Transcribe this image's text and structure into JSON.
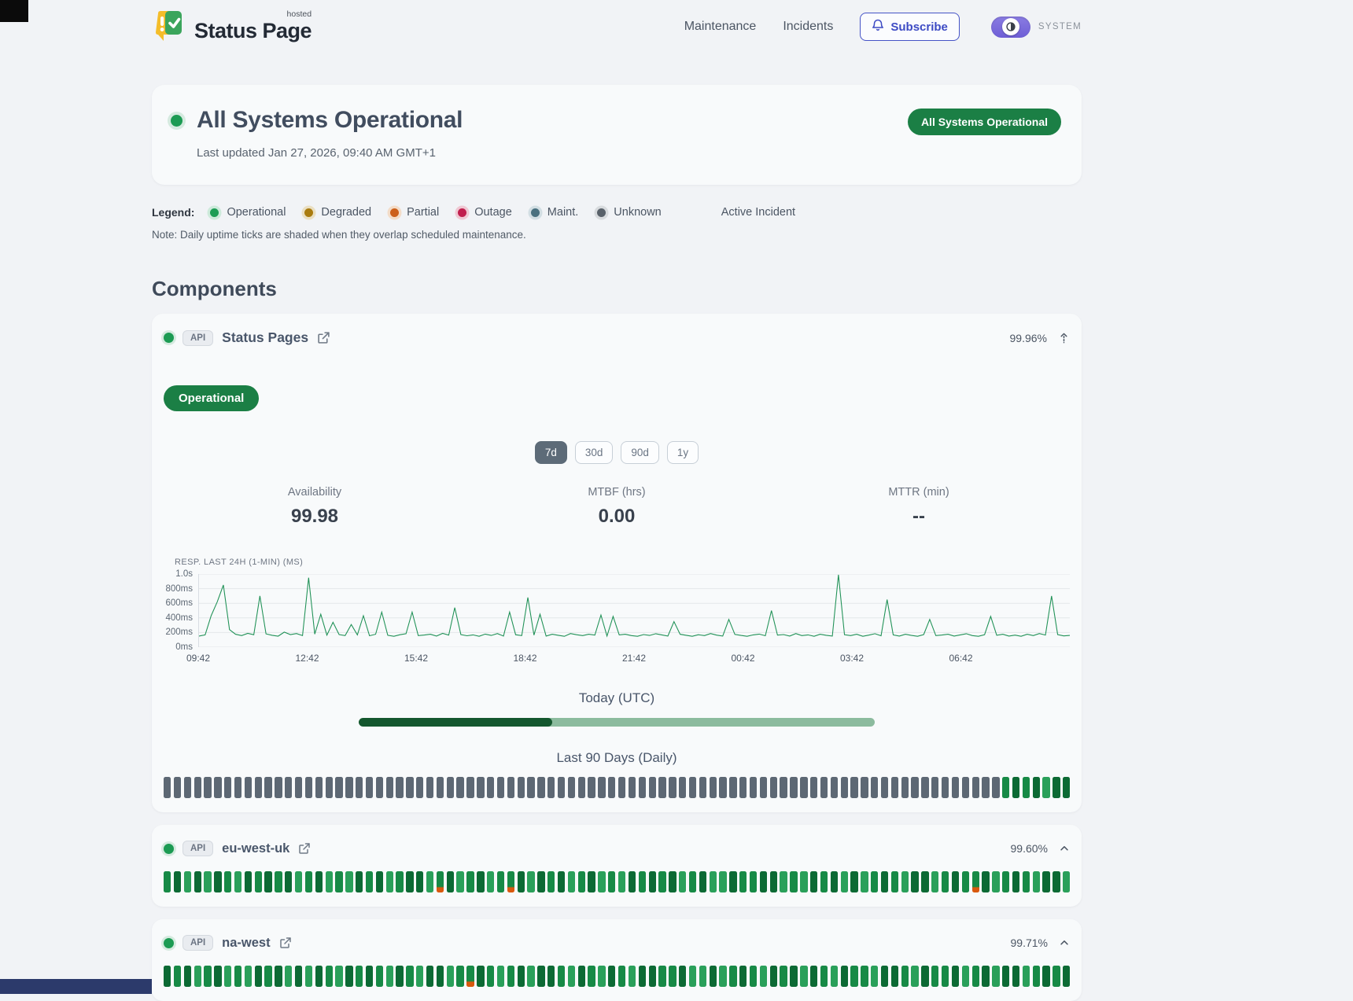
{
  "header": {
    "brand": {
      "name": "Status Page",
      "superscript": "hosted"
    },
    "nav": [
      {
        "label": "Maintenance"
      },
      {
        "label": "Incidents"
      }
    ],
    "subscribe_label": "Subscribe",
    "theme_label": "SYSTEM"
  },
  "hero": {
    "title": "All Systems Operational",
    "last_updated": "Last updated Jan 27, 2026, 09:40 AM GMT+1",
    "badge": "All Systems Operational"
  },
  "legend": {
    "label": "Legend:",
    "items": [
      {
        "label": "Operational",
        "color": "#1d9d55",
        "halo": "#cdeadb"
      },
      {
        "label": "Degraded",
        "color": "#a97b0e",
        "halo": "#eadfc2"
      },
      {
        "label": "Partial",
        "color": "#cc5f1a",
        "halo": "#f3dcc8"
      },
      {
        "label": "Outage",
        "color": "#c01e4d",
        "halo": "#efc8d3"
      },
      {
        "label": "Maint.",
        "color": "#49707f",
        "halo": "#d2dee3"
      },
      {
        "label": "Unknown",
        "color": "#59616a",
        "halo": "#d8dbde"
      }
    ],
    "active_incident_label": "Active Incident",
    "note": "Note: Daily uptime ticks are shaded when they overlap scheduled maintenance."
  },
  "components_title": "Components",
  "component": {
    "tag": "API",
    "name": "Status Pages",
    "availability_pct": "99.96%",
    "status_badge": "Operational",
    "ranges": [
      "7d",
      "30d",
      "90d",
      "1y"
    ],
    "selected_range": "7d",
    "stats": [
      {
        "label": "Availability",
        "value": "99.98"
      },
      {
        "label": "MTBF (hrs)",
        "value": "0.00"
      },
      {
        "label": "MTTR (min)",
        "value": "--"
      }
    ],
    "today_label": "Today (UTC)",
    "today_progress_pct": 37.5,
    "today_fill_color": "#14572e",
    "today_rest_color": "#8cbb9e",
    "history_label": "Last 90 Days (Daily)",
    "history_ticks": [
      null,
      null,
      null,
      null,
      null,
      null,
      null,
      null,
      null,
      null,
      null,
      null,
      null,
      null,
      null,
      null,
      null,
      null,
      null,
      null,
      null,
      null,
      null,
      null,
      null,
      null,
      null,
      null,
      null,
      null,
      null,
      null,
      null,
      null,
      null,
      null,
      null,
      null,
      null,
      null,
      null,
      null,
      null,
      null,
      null,
      null,
      null,
      null,
      null,
      null,
      null,
      null,
      null,
      null,
      null,
      null,
      null,
      null,
      null,
      null,
      null,
      null,
      null,
      null,
      null,
      null,
      null,
      null,
      null,
      null,
      null,
      null,
      null,
      null,
      null,
      null,
      null,
      null,
      null,
      null,
      null,
      null,
      null,
      99.8,
      100,
      99.8,
      100,
      99.2,
      100,
      100
    ]
  },
  "chart_data": {
    "type": "line",
    "title": "RESP. LAST 24H (1-MIN) (MS)",
    "x_ticks": [
      "09:42",
      "12:42",
      "15:42",
      "18:42",
      "21:42",
      "00:42",
      "03:42",
      "06:42"
    ],
    "y_ticks": [
      "1.0s",
      "800ms",
      "600ms",
      "400ms",
      "200ms",
      "0ms"
    ],
    "ylim": [
      0,
      1000
    ],
    "unit": "ms",
    "line_color": "#1f9156",
    "grid_color": "#e3e7ea",
    "values": [
      152,
      168,
      430,
      620,
      850,
      240,
      176,
      158,
      188,
      170,
      700,
      182,
      162,
      150,
      205,
      172,
      186,
      158,
      950,
      178,
      450,
      164,
      340,
      172,
      158,
      310,
      168,
      430,
      156,
      176,
      480,
      162,
      148,
      170,
      184,
      480,
      158,
      166,
      176,
      152,
      188,
      164,
      540,
      172,
      156,
      168,
      148,
      178,
      160,
      186,
      152,
      480,
      170,
      158,
      680,
      164,
      450,
      152,
      176,
      162,
      148,
      186,
      170,
      158,
      176,
      164,
      440,
      152,
      420,
      168,
      176,
      158,
      148,
      172,
      160,
      184,
      168,
      152,
      350,
      176,
      162,
      148,
      170,
      158,
      186,
      164,
      152,
      380,
      174,
      160,
      148,
      168,
      178,
      156,
      500,
      164,
      172,
      152,
      186,
      158,
      168,
      148,
      176,
      162,
      152,
      990,
      170,
      158,
      176,
      148,
      164,
      184,
      156,
      650,
      168,
      152,
      176,
      160,
      148,
      172,
      380,
      158,
      166,
      176,
      152,
      168,
      184,
      158,
      148,
      170,
      420,
      162,
      176,
      152,
      164,
      148,
      176,
      158,
      186,
      166,
      700,
      172,
      154,
      160
    ]
  },
  "subcomponents": [
    {
      "tag": "API",
      "name": "eu-west-uk",
      "availability_pct": "99.60%",
      "ticks": [
        99.9,
        100,
        99.7,
        99.95,
        99.5,
        100,
        99.8,
        99.6,
        100,
        99.9,
        100,
        99.8,
        99.95,
        99.6,
        99.9,
        100,
        99.5,
        99.85,
        99.7,
        100,
        99.9,
        100,
        99.6,
        99.8,
        100,
        99.95,
        99.7,
        97.8,
        100,
        99.5,
        99.85,
        100,
        99.7,
        99.9,
        97.8,
        100,
        99.6,
        99.95,
        99.8,
        100,
        99.5,
        99.9,
        100,
        99.7,
        99.85,
        99.6,
        100,
        99.9,
        99.95,
        99.8,
        100,
        99.6,
        99.9,
        100,
        99.7,
        99.5,
        100,
        99.85,
        99.8,
        99.95,
        100,
        99.3,
        99.9,
        99.6,
        100,
        99.8,
        99.95,
        99.7,
        100,
        99.5,
        99.9,
        100,
        99.85,
        99.6,
        99.95,
        100,
        99.7,
        99.8,
        100,
        99.9,
        97.6,
        100,
        99.5,
        99.9,
        100,
        99.8,
        99.6,
        99.95,
        100,
        99.7
      ]
    },
    {
      "tag": "API",
      "name": "na-west",
      "availability_pct": "99.71%",
      "ticks": [
        100,
        99.8,
        99.95,
        99.6,
        99.9,
        100,
        99.5,
        99.85,
        99.7,
        100,
        99.9,
        100,
        99.7,
        99.95,
        99.5,
        100,
        99.8,
        99.6,
        100,
        99.9,
        100,
        99.85,
        99.6,
        100,
        99.9,
        99.7,
        100,
        99.95,
        99.5,
        99.8,
        97.9,
        100,
        99.9,
        99.6,
        99.85,
        100,
        99.7,
        99.95,
        100,
        99.8,
        99.5,
        100,
        99.9,
        99.7,
        100,
        99.85,
        99.6,
        100,
        99.95,
        99.9,
        99.8,
        100,
        99.7,
        99.5,
        100,
        99.2,
        99.9,
        100,
        99.85,
        99.6,
        100,
        99.9,
        99.95,
        99.7,
        100,
        99.8,
        99.5,
        100,
        99.9,
        99.85,
        99.6,
        100,
        99.95,
        99.9,
        99.7,
        100,
        99.8,
        99.85,
        100,
        99.5,
        99.9,
        100,
        99.6,
        99.95,
        100,
        99.7,
        99.9,
        100,
        99.8,
        100
      ]
    }
  ],
  "tick_colors": {
    "nodata": "#5d6874",
    "up_dark": "#0c6a34",
    "up_mid": "#178a46",
    "up_light": "#2aa05a",
    "partial": "#d9590e"
  }
}
